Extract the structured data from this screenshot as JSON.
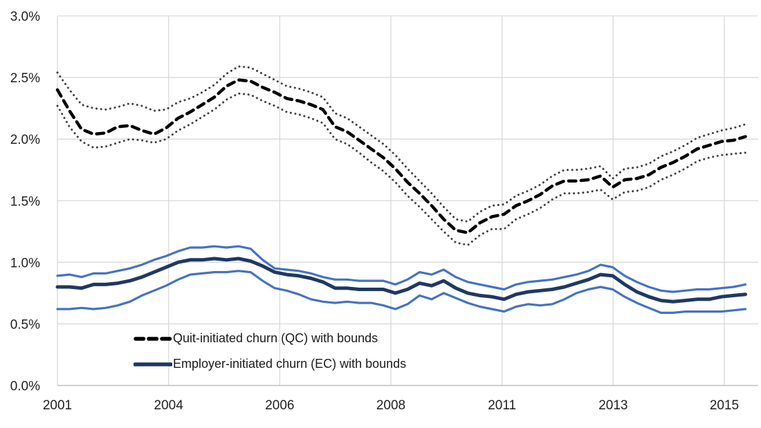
{
  "chart_data": {
    "type": "line",
    "title": "",
    "y_axis": {
      "unit": "%",
      "min": 0.0,
      "max": 3.0,
      "tick_step": 0.5,
      "tick_labels": [
        "0.0%",
        "0.5%",
        "1.0%",
        "1.5%",
        "2.0%",
        "2.5%",
        "3.0%"
      ],
      "grid": true
    },
    "x_axis": {
      "tick_labels": [
        "2001",
        "2004",
        "2006",
        "2008",
        "2011",
        "2013",
        "2015"
      ],
      "gridlines_evenly_spaced": true,
      "grid": true
    },
    "n_points": 58,
    "legend_position": "inside-bottom-left",
    "legend": [
      {
        "label": "Quit-initiated churn (QC) with bounds",
        "color": "#000000",
        "style": "dashed"
      },
      {
        "label": "Employer-initiated churn (EC) with bounds",
        "color": "#1f3864",
        "style": "solid"
      }
    ],
    "series": [
      {
        "name": "Quit-initiated churn (QC)",
        "role": "center",
        "group": "QC",
        "color": "#000000",
        "style": "dashed",
        "width": 4.5,
        "values": [
          2.4,
          2.23,
          2.08,
          2.04,
          2.05,
          2.1,
          2.11,
          2.07,
          2.04,
          2.09,
          2.17,
          2.22,
          2.28,
          2.34,
          2.43,
          2.48,
          2.47,
          2.42,
          2.38,
          2.33,
          2.31,
          2.28,
          2.24,
          2.1,
          2.06,
          1.99,
          1.92,
          1.85,
          1.76,
          1.65,
          1.56,
          1.46,
          1.35,
          1.26,
          1.24,
          1.32,
          1.37,
          1.39,
          1.46,
          1.5,
          1.55,
          1.62,
          1.66,
          1.66,
          1.67,
          1.7,
          1.61,
          1.67,
          1.68,
          1.71,
          1.77,
          1.81,
          1.86,
          1.92,
          1.95,
          1.98,
          1.99,
          2.02
        ]
      },
      {
        "name": "QC upper bound",
        "role": "upper-bound",
        "group": "QC",
        "color": "#404040",
        "style": "dotted",
        "width": 3,
        "values": [
          2.54,
          2.4,
          2.28,
          2.25,
          2.24,
          2.26,
          2.29,
          2.27,
          2.23,
          2.24,
          2.3,
          2.33,
          2.38,
          2.44,
          2.53,
          2.59,
          2.58,
          2.53,
          2.48,
          2.43,
          2.41,
          2.38,
          2.34,
          2.21,
          2.17,
          2.1,
          2.03,
          1.96,
          1.87,
          1.76,
          1.66,
          1.56,
          1.45,
          1.35,
          1.33,
          1.41,
          1.46,
          1.47,
          1.54,
          1.58,
          1.63,
          1.7,
          1.75,
          1.75,
          1.76,
          1.78,
          1.68,
          1.76,
          1.77,
          1.8,
          1.86,
          1.9,
          1.95,
          2.01,
          2.04,
          2.07,
          2.09,
          2.12
        ]
      },
      {
        "name": "QC lower bound",
        "role": "lower-bound",
        "group": "QC",
        "color": "#404040",
        "style": "dotted",
        "width": 3,
        "values": [
          2.27,
          2.1,
          1.98,
          1.93,
          1.94,
          1.97,
          2.0,
          1.99,
          1.97,
          2.0,
          2.07,
          2.12,
          2.18,
          2.24,
          2.32,
          2.37,
          2.36,
          2.31,
          2.27,
          2.22,
          2.2,
          2.17,
          2.13,
          2.0,
          1.96,
          1.89,
          1.81,
          1.74,
          1.65,
          1.54,
          1.45,
          1.35,
          1.25,
          1.16,
          1.14,
          1.22,
          1.27,
          1.27,
          1.35,
          1.39,
          1.44,
          1.51,
          1.56,
          1.56,
          1.57,
          1.59,
          1.51,
          1.57,
          1.58,
          1.61,
          1.67,
          1.71,
          1.76,
          1.82,
          1.85,
          1.87,
          1.88,
          1.89
        ]
      },
      {
        "name": "Employer-initiated churn (EC)",
        "role": "center",
        "group": "EC",
        "color": "#1f3864",
        "style": "solid",
        "width": 5,
        "values": [
          0.8,
          0.8,
          0.79,
          0.82,
          0.82,
          0.83,
          0.85,
          0.88,
          0.92,
          0.96,
          1.0,
          1.02,
          1.02,
          1.03,
          1.02,
          1.03,
          1.01,
          0.97,
          0.92,
          0.9,
          0.89,
          0.87,
          0.84,
          0.79,
          0.79,
          0.78,
          0.78,
          0.78,
          0.75,
          0.78,
          0.83,
          0.81,
          0.85,
          0.79,
          0.75,
          0.73,
          0.72,
          0.7,
          0.74,
          0.76,
          0.77,
          0.78,
          0.8,
          0.83,
          0.86,
          0.9,
          0.89,
          0.82,
          0.76,
          0.72,
          0.69,
          0.68,
          0.69,
          0.7,
          0.7,
          0.72,
          0.73,
          0.74
        ]
      },
      {
        "name": "EC upper bound",
        "role": "upper-bound",
        "group": "EC",
        "color": "#4472c4",
        "style": "solid",
        "width": 3.2,
        "values": [
          0.89,
          0.9,
          0.88,
          0.91,
          0.91,
          0.93,
          0.95,
          0.98,
          1.02,
          1.05,
          1.09,
          1.12,
          1.12,
          1.13,
          1.12,
          1.13,
          1.11,
          1.02,
          0.95,
          0.94,
          0.93,
          0.91,
          0.88,
          0.86,
          0.86,
          0.85,
          0.85,
          0.85,
          0.82,
          0.86,
          0.92,
          0.9,
          0.94,
          0.88,
          0.84,
          0.82,
          0.8,
          0.78,
          0.82,
          0.84,
          0.85,
          0.86,
          0.88,
          0.9,
          0.93,
          0.98,
          0.96,
          0.89,
          0.84,
          0.8,
          0.77,
          0.76,
          0.77,
          0.78,
          0.78,
          0.79,
          0.8,
          0.82
        ]
      },
      {
        "name": "EC lower bound",
        "role": "lower-bound",
        "group": "EC",
        "color": "#4472c4",
        "style": "solid",
        "width": 3.2,
        "values": [
          0.62,
          0.62,
          0.63,
          0.62,
          0.63,
          0.65,
          0.68,
          0.73,
          0.77,
          0.81,
          0.86,
          0.9,
          0.91,
          0.92,
          0.92,
          0.93,
          0.92,
          0.85,
          0.79,
          0.77,
          0.74,
          0.7,
          0.68,
          0.67,
          0.68,
          0.67,
          0.67,
          0.65,
          0.62,
          0.66,
          0.73,
          0.7,
          0.75,
          0.71,
          0.67,
          0.64,
          0.62,
          0.6,
          0.64,
          0.66,
          0.65,
          0.66,
          0.7,
          0.75,
          0.78,
          0.8,
          0.78,
          0.72,
          0.67,
          0.63,
          0.59,
          0.59,
          0.6,
          0.6,
          0.6,
          0.6,
          0.61,
          0.62
        ]
      }
    ]
  },
  "colors": {
    "background": "#ffffff",
    "gridline": "#d9d9d9",
    "axis_line": "#bfbfbf",
    "tick_text": "#1f1f1f",
    "qc_center": "#000000",
    "qc_bounds": "#404040",
    "ec_center": "#1f3864",
    "ec_bounds": "#4472c4"
  }
}
